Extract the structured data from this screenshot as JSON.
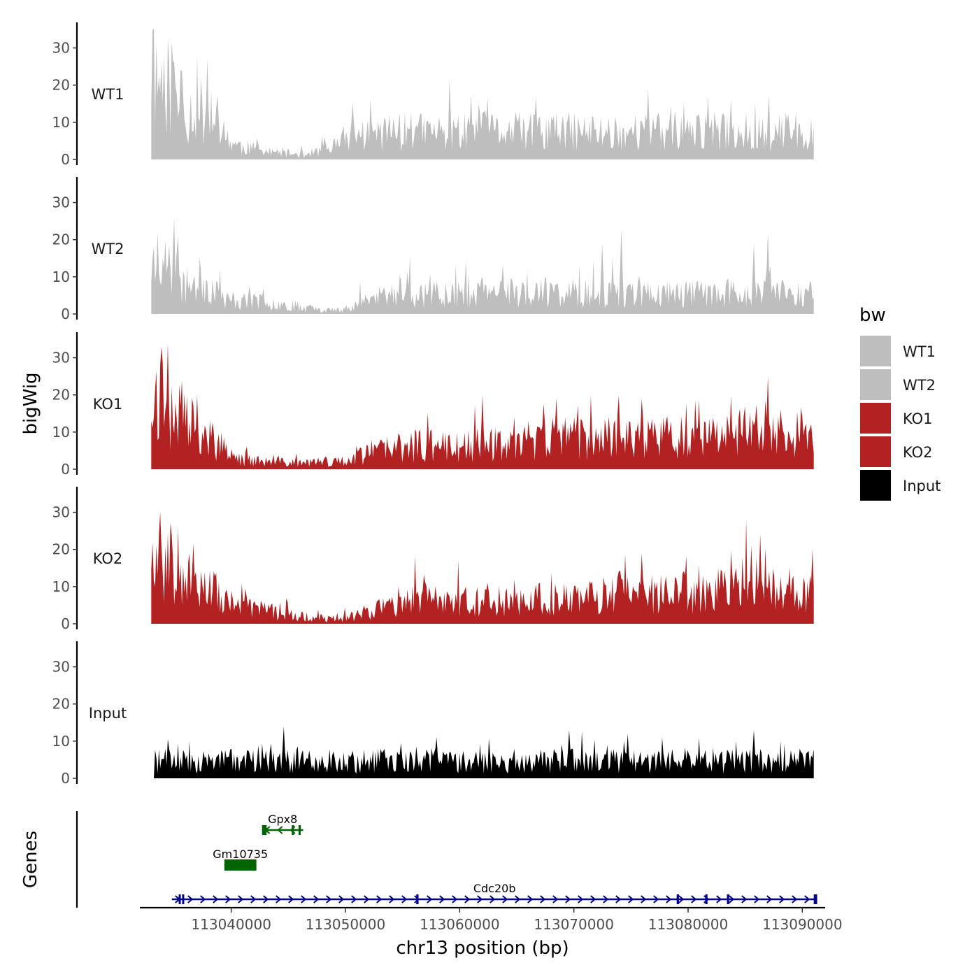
{
  "chart_data": {
    "type": "area",
    "chromosome_label": "chr13 position (bp)",
    "ylabel": "bigWig",
    "genes_label": "Genes",
    "legend_title": "bw",
    "xlim": [
      113032000,
      113092000
    ],
    "data_x_range": [
      113033000,
      113091000
    ],
    "x_ticks": [
      113040000,
      113050000,
      113060000,
      113070000,
      113080000,
      113090000
    ],
    "x_tick_labels": [
      "113040000",
      "113050000",
      "113060000",
      "113070000",
      "113080000",
      "113090000"
    ],
    "ylim": [
      0,
      35
    ],
    "y_ticks": [
      0,
      10,
      20,
      30
    ],
    "y_tick_labels": [
      "0",
      "10",
      "20",
      "30"
    ],
    "tracks": [
      {
        "name": "WT1",
        "color": "#bebebe",
        "seed": 11,
        "baseline": [
          [
            0,
            25
          ],
          [
            0.03,
            21
          ],
          [
            0.04,
            13
          ],
          [
            0.07,
            15
          ],
          [
            0.11,
            7
          ],
          [
            0.13,
            4
          ],
          [
            0.18,
            2
          ],
          [
            0.23,
            1.5
          ],
          [
            0.27,
            3
          ],
          [
            0.3,
            7
          ],
          [
            0.37,
            8
          ],
          [
            0.43,
            8
          ],
          [
            0.5,
            8
          ],
          [
            0.57,
            8
          ],
          [
            0.65,
            8
          ],
          [
            0.73,
            8
          ],
          [
            0.8,
            8
          ],
          [
            0.88,
            8
          ],
          [
            1.0,
            8
          ]
        ],
        "spikes": [
          [
            0.085,
            27
          ],
          [
            0.045,
            24
          ],
          [
            0.02,
            28
          ],
          [
            0.035,
            26
          ],
          [
            0.75,
            19
          ],
          [
            0.58,
            17
          ],
          [
            0.84,
            17
          ],
          [
            0.875,
            16
          ]
        ]
      },
      {
        "name": "WT2",
        "color": "#bebebe",
        "seed": 23,
        "baseline": [
          [
            0,
            15
          ],
          [
            0.03,
            13
          ],
          [
            0.05,
            8
          ],
          [
            0.08,
            10
          ],
          [
            0.11,
            4
          ],
          [
            0.13,
            4
          ],
          [
            0.19,
            3
          ],
          [
            0.25,
            1.5
          ],
          [
            0.29,
            1
          ],
          [
            0.32,
            4
          ],
          [
            0.4,
            6
          ],
          [
            0.48,
            6
          ],
          [
            0.55,
            6
          ],
          [
            0.63,
            6
          ],
          [
            0.7,
            6
          ],
          [
            0.77,
            6
          ],
          [
            0.85,
            6
          ],
          [
            0.92,
            6
          ],
          [
            1.0,
            6
          ]
        ],
        "spikes": [
          [
            0.01,
            22
          ],
          [
            0.04,
            21
          ],
          [
            0.71,
            23
          ],
          [
            0.93,
            22
          ],
          [
            0.68,
            19
          ],
          [
            0.91,
            19
          ]
        ]
      },
      {
        "name": "KO1",
        "color": "#b22222",
        "seed": 37,
        "baseline": [
          [
            0,
            22
          ],
          [
            0.02,
            22
          ],
          [
            0.04,
            16
          ],
          [
            0.07,
            13
          ],
          [
            0.1,
            7
          ],
          [
            0.13,
            3
          ],
          [
            0.18,
            2
          ],
          [
            0.23,
            2
          ],
          [
            0.28,
            2
          ],
          [
            0.33,
            5
          ],
          [
            0.4,
            7
          ],
          [
            0.48,
            7
          ],
          [
            0.55,
            7
          ],
          [
            0.63,
            9
          ],
          [
            0.7,
            9
          ],
          [
            0.77,
            9
          ],
          [
            0.85,
            9
          ],
          [
            0.92,
            12
          ],
          [
            1.0,
            8
          ]
        ],
        "spikes": [
          [
            0.015,
            33
          ],
          [
            0.025,
            34
          ],
          [
            0.07,
            20
          ],
          [
            0.93,
            25
          ],
          [
            0.5,
            20
          ],
          [
            0.74,
            19
          ]
        ]
      },
      {
        "name": "KO2",
        "color": "#b22222",
        "seed": 53,
        "baseline": [
          [
            0,
            20
          ],
          [
            0.03,
            17
          ],
          [
            0.06,
            14
          ],
          [
            0.09,
            10
          ],
          [
            0.12,
            5
          ],
          [
            0.16,
            4
          ],
          [
            0.2,
            3
          ],
          [
            0.25,
            1.5
          ],
          [
            0.29,
            1.5
          ],
          [
            0.33,
            4
          ],
          [
            0.4,
            7
          ],
          [
            0.48,
            7
          ],
          [
            0.55,
            7
          ],
          [
            0.63,
            7
          ],
          [
            0.7,
            9
          ],
          [
            0.77,
            9
          ],
          [
            0.85,
            9
          ],
          [
            0.9,
            14
          ],
          [
            0.93,
            10
          ],
          [
            1.0,
            9
          ]
        ],
        "spikes": [
          [
            0.012,
            24
          ],
          [
            0.03,
            24
          ],
          [
            0.92,
            24
          ],
          [
            0.74,
            19
          ],
          [
            0.905,
            21
          ],
          [
            0.998,
            20
          ]
        ]
      },
      {
        "name": "Input",
        "color": "#000000",
        "seed": 71,
        "baseline": [
          [
            0,
            5
          ],
          [
            0.5,
            5
          ],
          [
            1.0,
            5
          ]
        ],
        "spikes": [
          [
            0.2,
            14
          ],
          [
            0.63,
            13
          ],
          [
            0.91,
            13
          ],
          [
            0.43,
            11
          ],
          [
            0.72,
            12
          ]
        ]
      }
    ],
    "legend": [
      {
        "label": "WT1",
        "color": "#bebebe"
      },
      {
        "label": "WT2",
        "color": "#bebebe"
      },
      {
        "label": "KO1",
        "color": "#b22222"
      },
      {
        "label": "KO2",
        "color": "#b22222"
      },
      {
        "label": "Input",
        "color": "#000000"
      }
    ],
    "genes": [
      {
        "name": "Gpx8",
        "start": 113042700,
        "end": 113046300,
        "strand": "-",
        "color": "#006400",
        "row": 1,
        "exons": [
          [
            113042700,
            113043100
          ],
          [
            113045300,
            113045500
          ],
          [
            113045900,
            113046000
          ]
        ]
      },
      {
        "name": "Gm10735",
        "start": 113039400,
        "end": 113042200,
        "strand": "+",
        "color": "#006400",
        "row": 2,
        "exons": [
          [
            113039400,
            113042200
          ]
        ]
      },
      {
        "name": "Cdc20b",
        "start": 113034800,
        "end": 113091300,
        "strand": "+",
        "color": "#00008b",
        "row": 3,
        "exons": [
          [
            113035400,
            113035500
          ],
          [
            113035700,
            113035800
          ],
          [
            113056200,
            113056400
          ],
          [
            113079000,
            113079200
          ],
          [
            113081500,
            113081700
          ],
          [
            113083400,
            113083600
          ],
          [
            113091000,
            113091300
          ]
        ]
      }
    ]
  }
}
